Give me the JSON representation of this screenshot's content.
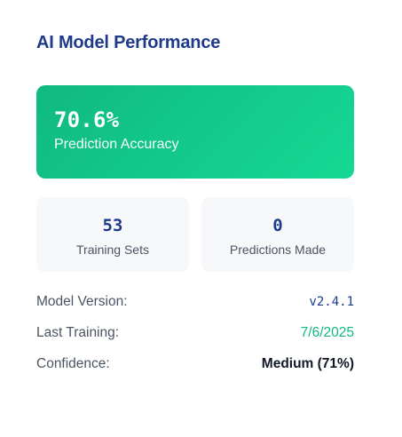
{
  "title": "AI Model Performance",
  "hero": {
    "value": "70.6%",
    "label": "Prediction Accuracy"
  },
  "stats": [
    {
      "value": "53",
      "label": "Training Sets"
    },
    {
      "value": "0",
      "label": "Predictions Made"
    }
  ],
  "details": {
    "model_version": {
      "label": "Model Version:",
      "value": "v2.4.1"
    },
    "last_training": {
      "label": "Last Training:",
      "value": "7/6/2025"
    },
    "confidence": {
      "label": "Confidence:",
      "value": "Medium (71%)"
    }
  },
  "colors": {
    "title": "#1e3a8a",
    "accent_green": "#10b981",
    "card_bg": "#f7f8fa",
    "label_gray": "#4b5563"
  }
}
